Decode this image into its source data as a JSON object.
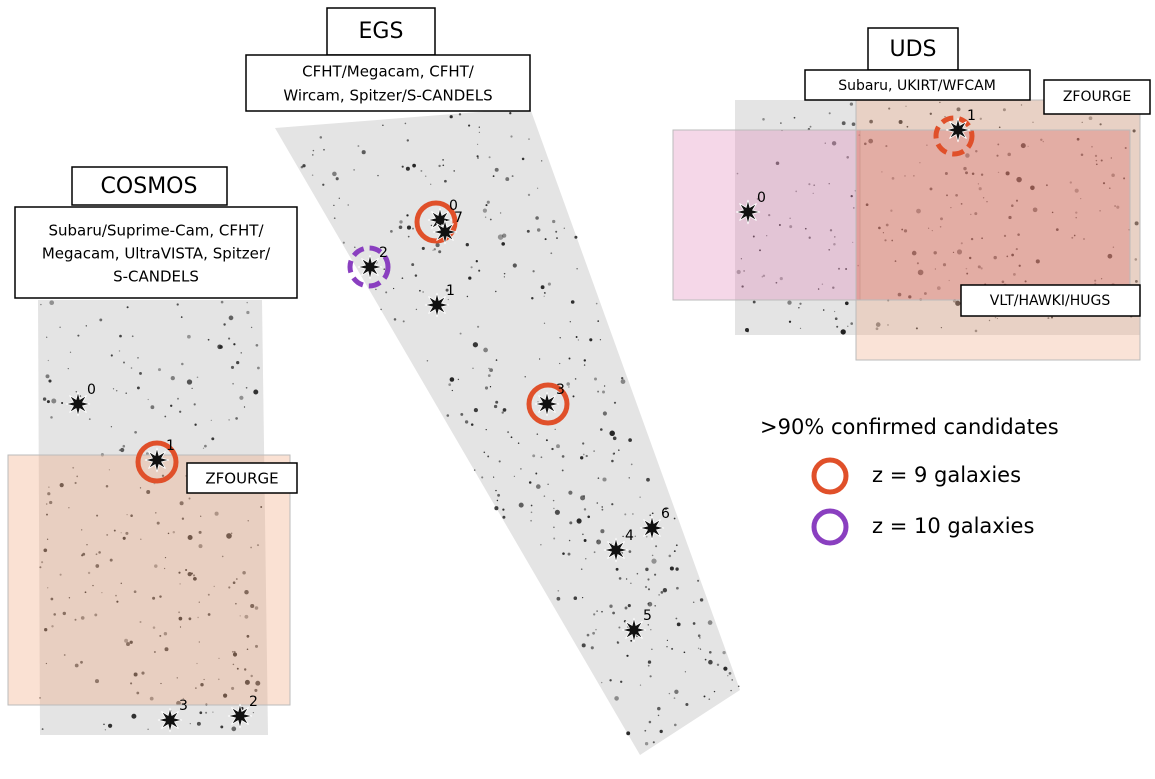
{
  "fields": [
    {
      "name": "COSMOS",
      "instruments": [
        "Subaru/Suprime-Cam, CFHT/",
        "Megacam, UltraVISTA, Spitzer/",
        "S-CANDELS"
      ],
      "surveys": [
        "ZFOURGE"
      ],
      "candidates": [
        "0",
        "1",
        "2",
        "3"
      ]
    },
    {
      "name": "EGS",
      "instruments": [
        "CFHT/Megacam, CFHT/",
        "Wircam, Spitzer/S-CANDELS"
      ],
      "candidates": [
        "0",
        "1",
        "2",
        "3",
        "4",
        "5",
        "6",
        "7"
      ]
    },
    {
      "name": "UDS",
      "instruments": [
        "Subaru, UKIRT/WFCAM"
      ],
      "surveys": [
        "ZFOURGE",
        "VLT/HAWKI/HUGS"
      ],
      "candidates": [
        "0",
        "1"
      ]
    }
  ],
  "legend": {
    "title": ">90% confirmed candidates",
    "items": [
      {
        "label": "z = 9 galaxies",
        "color": "#e0502a"
      },
      {
        "label": "z = 10 galaxies",
        "color": "#8a3fc0"
      }
    ]
  }
}
